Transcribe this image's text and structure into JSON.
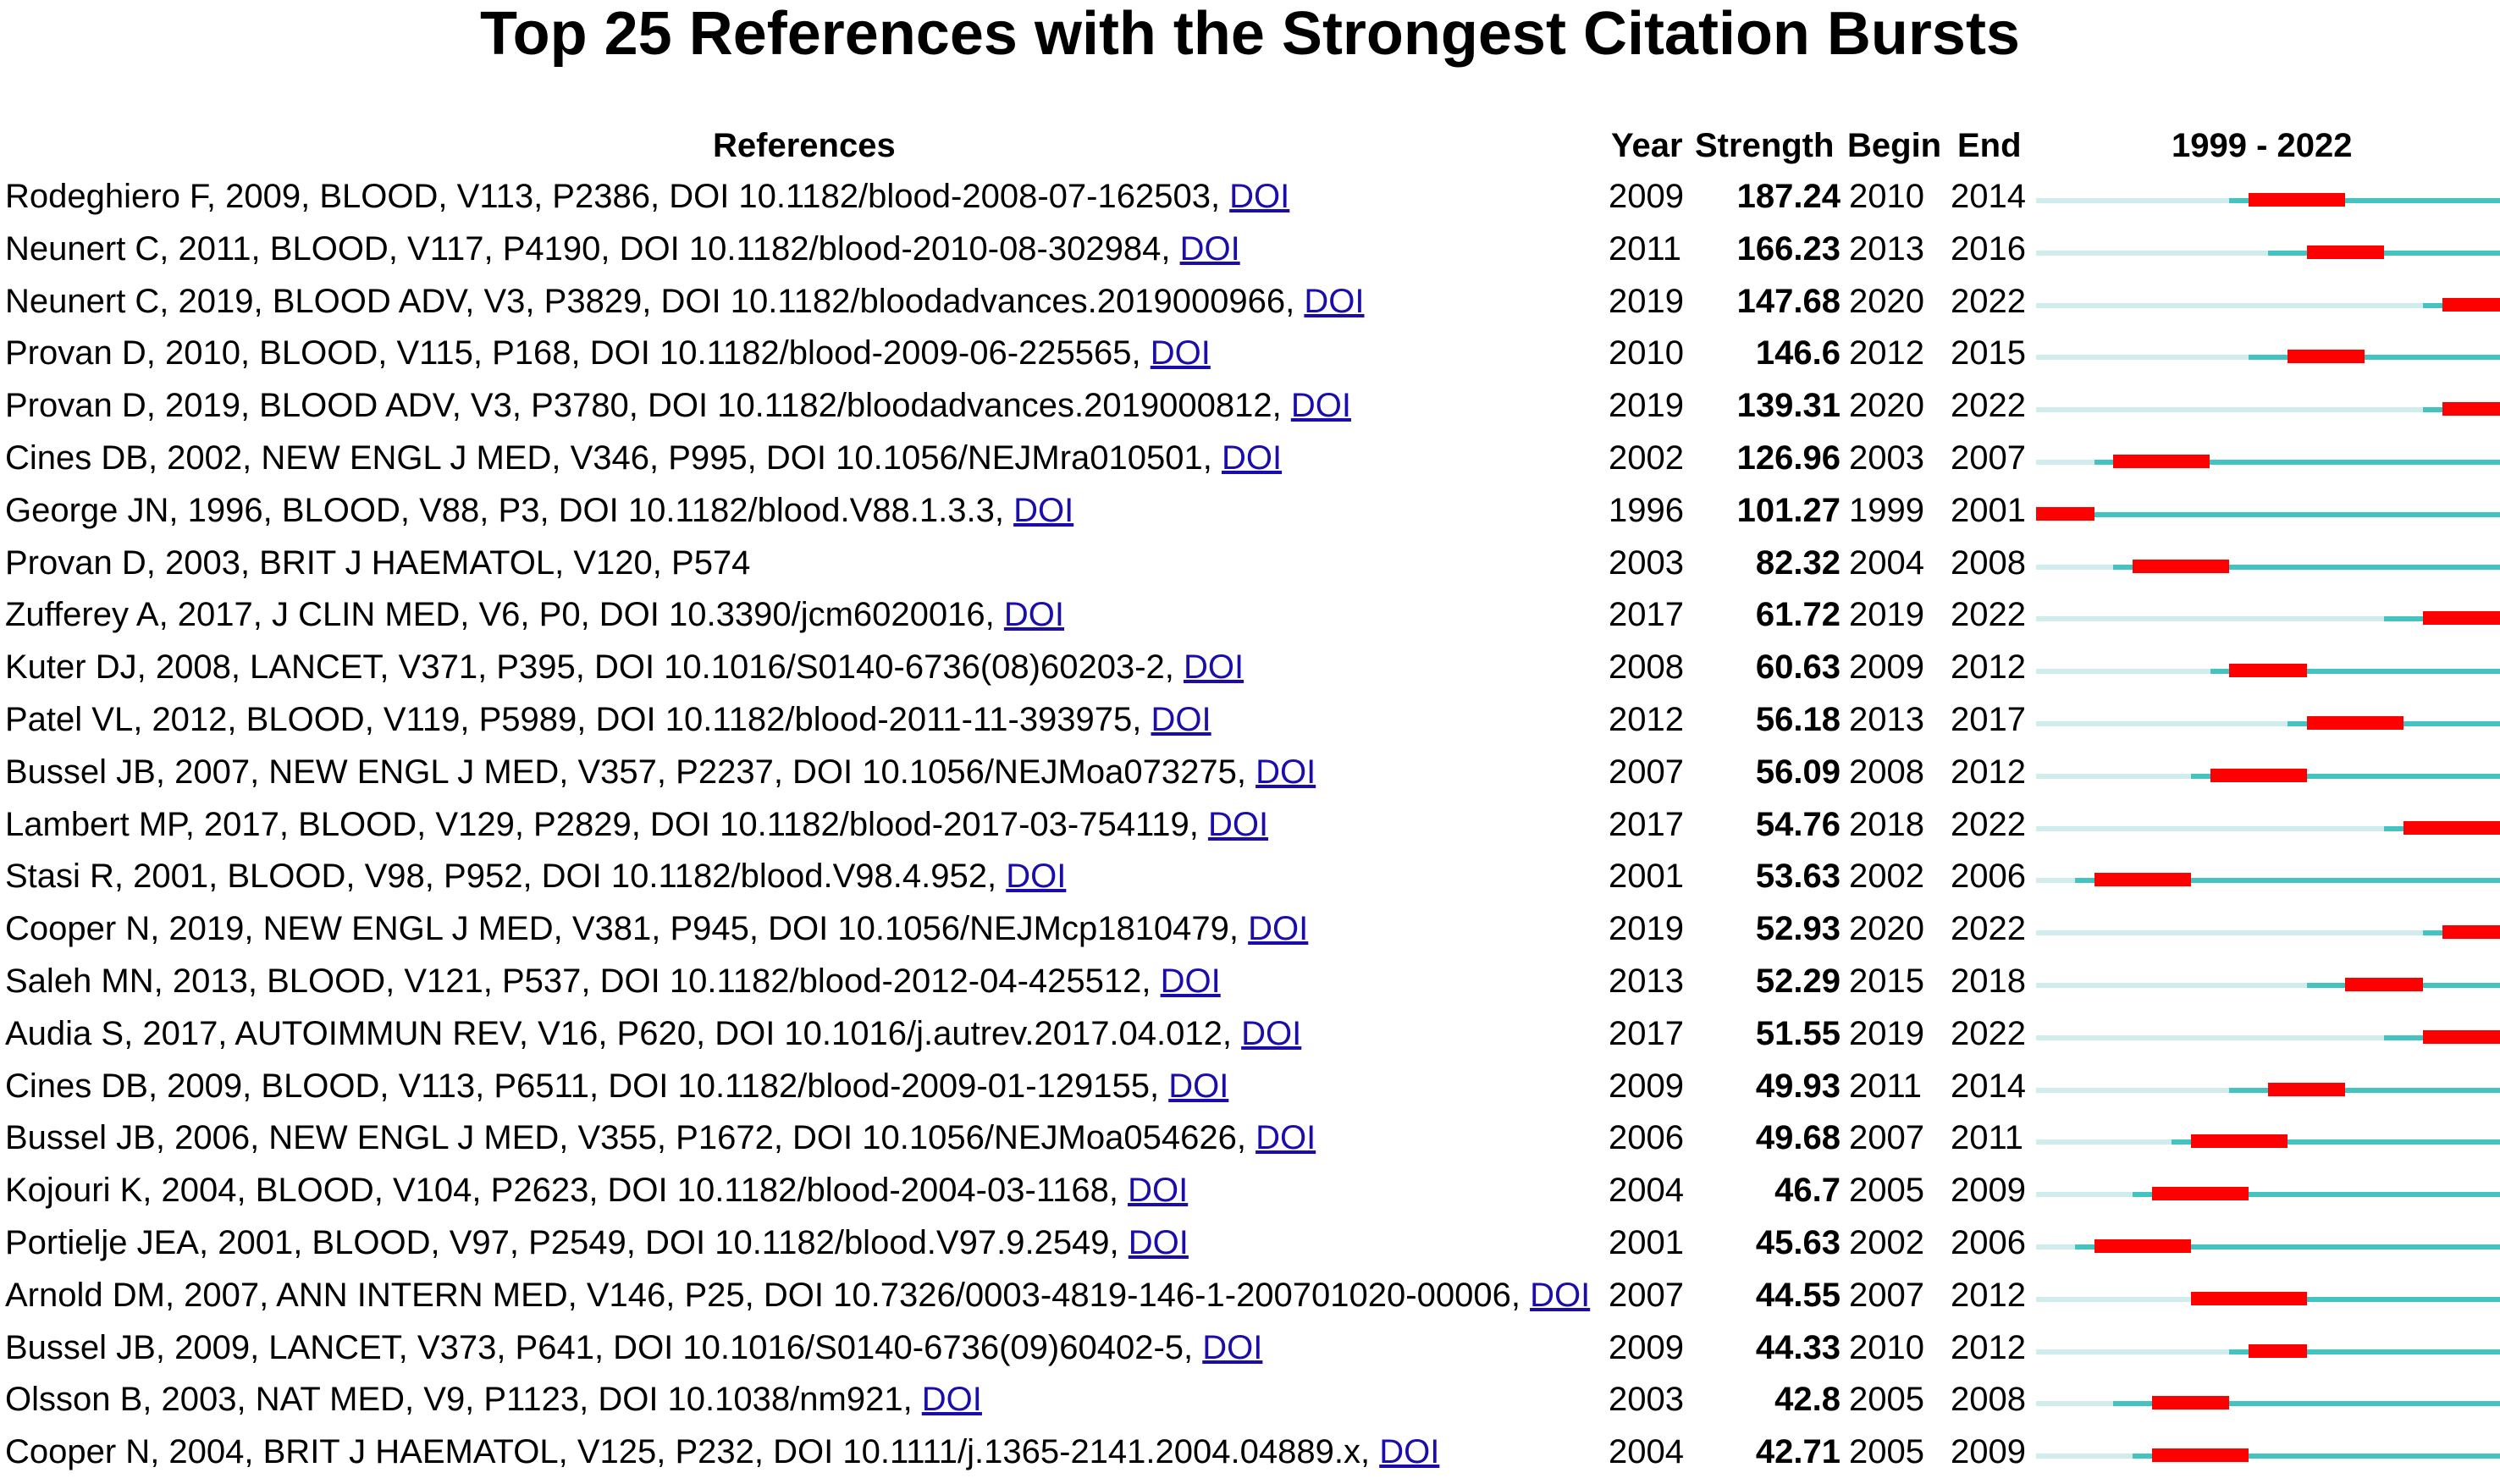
{
  "chart_data": {
    "type": "table",
    "title": "Top 25 References with the Strongest Citation Bursts",
    "columns": [
      "References",
      "Year",
      "Strength",
      "Begin",
      "End",
      "1999 - 2022"
    ],
    "range_label": "1999 - 2022",
    "range": [
      1999,
      2022
    ],
    "colors": {
      "burst": "#ff0000",
      "active": "#44c3c3",
      "inactive": "#d0ecec"
    },
    "rows": [
      {
        "ref": "Rodeghiero F, 2009, BLOOD, V113, P2386, DOI 10.1182/blood-2008-07-162503, ",
        "doi": "DOI",
        "year": "2009",
        "strength": "187.24",
        "begin": "2010",
        "end": "2014"
      },
      {
        "ref": "Neunert C, 2011, BLOOD, V117, P4190, DOI 10.1182/blood-2010-08-302984, ",
        "doi": "DOI",
        "year": "2011",
        "strength": "166.23",
        "begin": "2013",
        "end": "2016"
      },
      {
        "ref": "Neunert C, 2019, BLOOD ADV, V3, P3829, DOI 10.1182/bloodadvances.2019000966, ",
        "doi": "DOI",
        "year": "2019",
        "strength": "147.68",
        "begin": "2020",
        "end": "2022"
      },
      {
        "ref": "Provan D, 2010, BLOOD, V115, P168, DOI 10.1182/blood-2009-06-225565, ",
        "doi": "DOI",
        "year": "2010",
        "strength": "146.6",
        "begin": "2012",
        "end": "2015"
      },
      {
        "ref": "Provan D, 2019, BLOOD ADV, V3, P3780, DOI 10.1182/bloodadvances.2019000812, ",
        "doi": "DOI",
        "year": "2019",
        "strength": "139.31",
        "begin": "2020",
        "end": "2022"
      },
      {
        "ref": "Cines DB, 2002, NEW ENGL J MED, V346, P995, DOI 10.1056/NEJMra010501, ",
        "doi": "DOI",
        "year": "2002",
        "strength": "126.96",
        "begin": "2003",
        "end": "2007"
      },
      {
        "ref": "George JN, 1996, BLOOD, V88, P3, DOI 10.1182/blood.V88.1.3.3, ",
        "doi": "DOI",
        "year": "1996",
        "strength": "101.27",
        "begin": "1999",
        "end": "2001"
      },
      {
        "ref": "Provan D, 2003, BRIT J HAEMATOL, V120, P574",
        "doi": "",
        "year": "2003",
        "strength": "82.32",
        "begin": "2004",
        "end": "2008"
      },
      {
        "ref": "Zufferey A, 2017, J CLIN MED, V6, P0, DOI 10.3390/jcm6020016, ",
        "doi": "DOI",
        "year": "2017",
        "strength": "61.72",
        "begin": "2019",
        "end": "2022"
      },
      {
        "ref": "Kuter DJ, 2008, LANCET, V371, P395, DOI 10.1016/S0140-6736(08)60203-2, ",
        "doi": "DOI",
        "year": "2008",
        "strength": "60.63",
        "begin": "2009",
        "end": "2012"
      },
      {
        "ref": "Patel VL, 2012, BLOOD, V119, P5989, DOI 10.1182/blood-2011-11-393975, ",
        "doi": "DOI",
        "year": "2012",
        "strength": "56.18",
        "begin": "2013",
        "end": "2017"
      },
      {
        "ref": "Bussel JB, 2007, NEW ENGL J MED, V357, P2237, DOI 10.1056/NEJMoa073275, ",
        "doi": "DOI",
        "year": "2007",
        "strength": "56.09",
        "begin": "2008",
        "end": "2012"
      },
      {
        "ref": "Lambert MP, 2017, BLOOD, V129, P2829, DOI 10.1182/blood-2017-03-754119, ",
        "doi": "DOI",
        "year": "2017",
        "strength": "54.76",
        "begin": "2018",
        "end": "2022"
      },
      {
        "ref": "Stasi R, 2001, BLOOD, V98, P952, DOI 10.1182/blood.V98.4.952, ",
        "doi": "DOI",
        "year": "2001",
        "strength": "53.63",
        "begin": "2002",
        "end": "2006"
      },
      {
        "ref": "Cooper N, 2019, NEW ENGL J MED, V381, P945, DOI 10.1056/NEJMcp1810479, ",
        "doi": "DOI",
        "year": "2019",
        "strength": "52.93",
        "begin": "2020",
        "end": "2022"
      },
      {
        "ref": "Saleh MN, 2013, BLOOD, V121, P537, DOI 10.1182/blood-2012-04-425512, ",
        "doi": "DOI",
        "year": "2013",
        "strength": "52.29",
        "begin": "2015",
        "end": "2018"
      },
      {
        "ref": "Audia S, 2017, AUTOIMMUN REV, V16, P620, DOI 10.1016/j.autrev.2017.04.012, ",
        "doi": "DOI",
        "year": "2017",
        "strength": "51.55",
        "begin": "2019",
        "end": "2022"
      },
      {
        "ref": "Cines DB, 2009, BLOOD, V113, P6511, DOI 10.1182/blood-2009-01-129155, ",
        "doi": "DOI",
        "year": "2009",
        "strength": "49.93",
        "begin": "2011",
        "end": "2014"
      },
      {
        "ref": "Bussel JB, 2006, NEW ENGL J MED, V355, P1672, DOI 10.1056/NEJMoa054626, ",
        "doi": "DOI",
        "year": "2006",
        "strength": "49.68",
        "begin": "2007",
        "end": "2011"
      },
      {
        "ref": "Kojouri K, 2004, BLOOD, V104, P2623, DOI 10.1182/blood-2004-03-1168, ",
        "doi": "DOI",
        "year": "2004",
        "strength": "46.7",
        "begin": "2005",
        "end": "2009"
      },
      {
        "ref": "Portielje JEA, 2001, BLOOD, V97, P2549, DOI 10.1182/blood.V97.9.2549, ",
        "doi": "DOI",
        "year": "2001",
        "strength": "45.63",
        "begin": "2002",
        "end": "2006"
      },
      {
        "ref": "Arnold DM, 2007, ANN INTERN MED, V146, P25, DOI 10.7326/0003-4819-146-1-200701020-00006, ",
        "doi": "DOI",
        "year": "2007",
        "strength": "44.55",
        "begin": "2007",
        "end": "2012"
      },
      {
        "ref": "Bussel JB, 2009, LANCET, V373, P641, DOI 10.1016/S0140-6736(09)60402-5, ",
        "doi": "DOI",
        "year": "2009",
        "strength": "44.33",
        "begin": "2010",
        "end": "2012"
      },
      {
        "ref": "Olsson B, 2003, NAT MED, V9, P1123, DOI 10.1038/nm921, ",
        "doi": "DOI",
        "year": "2003",
        "strength": "42.8",
        "begin": "2005",
        "end": "2008"
      },
      {
        "ref": "Cooper N, 2004, BRIT J HAEMATOL, V125, P232, DOI 10.1111/j.1365-2141.2004.04889.x, ",
        "doi": "DOI",
        "year": "2004",
        "strength": "42.71",
        "begin": "2005",
        "end": "2009"
      }
    ]
  }
}
